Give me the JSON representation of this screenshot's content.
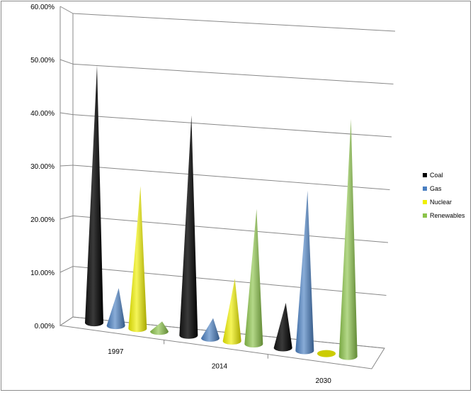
{
  "chart_data": {
    "type": "bar",
    "bar_shape": "cone",
    "three_d": true,
    "categories": [
      "1997",
      "2014",
      "2030"
    ],
    "series": [
      {
        "name": "Coal",
        "values": [
          51.5,
          44.0,
          9.0
        ]
      },
      {
        "name": "Gas",
        "values": [
          7.5,
          4.0,
          32.0
        ]
      },
      {
        "name": "Nuclear",
        "values": [
          28.5,
          12.5,
          0.5
        ]
      },
      {
        "name": "Renewables",
        "values": [
          2.0,
          27.0,
          47.5
        ]
      }
    ],
    "y_ticks": [
      "0.00%",
      "10.00%",
      "20.00%",
      "30.00%",
      "40.00%",
      "50.00%",
      "60.00%"
    ],
    "ylim": [
      0,
      60
    ],
    "grid": true,
    "legend_position": "right",
    "title": "",
    "xlabel": "",
    "ylabel": ""
  },
  "colors": {
    "Coal": "#000000",
    "Gas": "#4a7fc1",
    "Nuclear": "#f0f000",
    "Renewables": "#8bc34a",
    "grid": "#888888"
  }
}
